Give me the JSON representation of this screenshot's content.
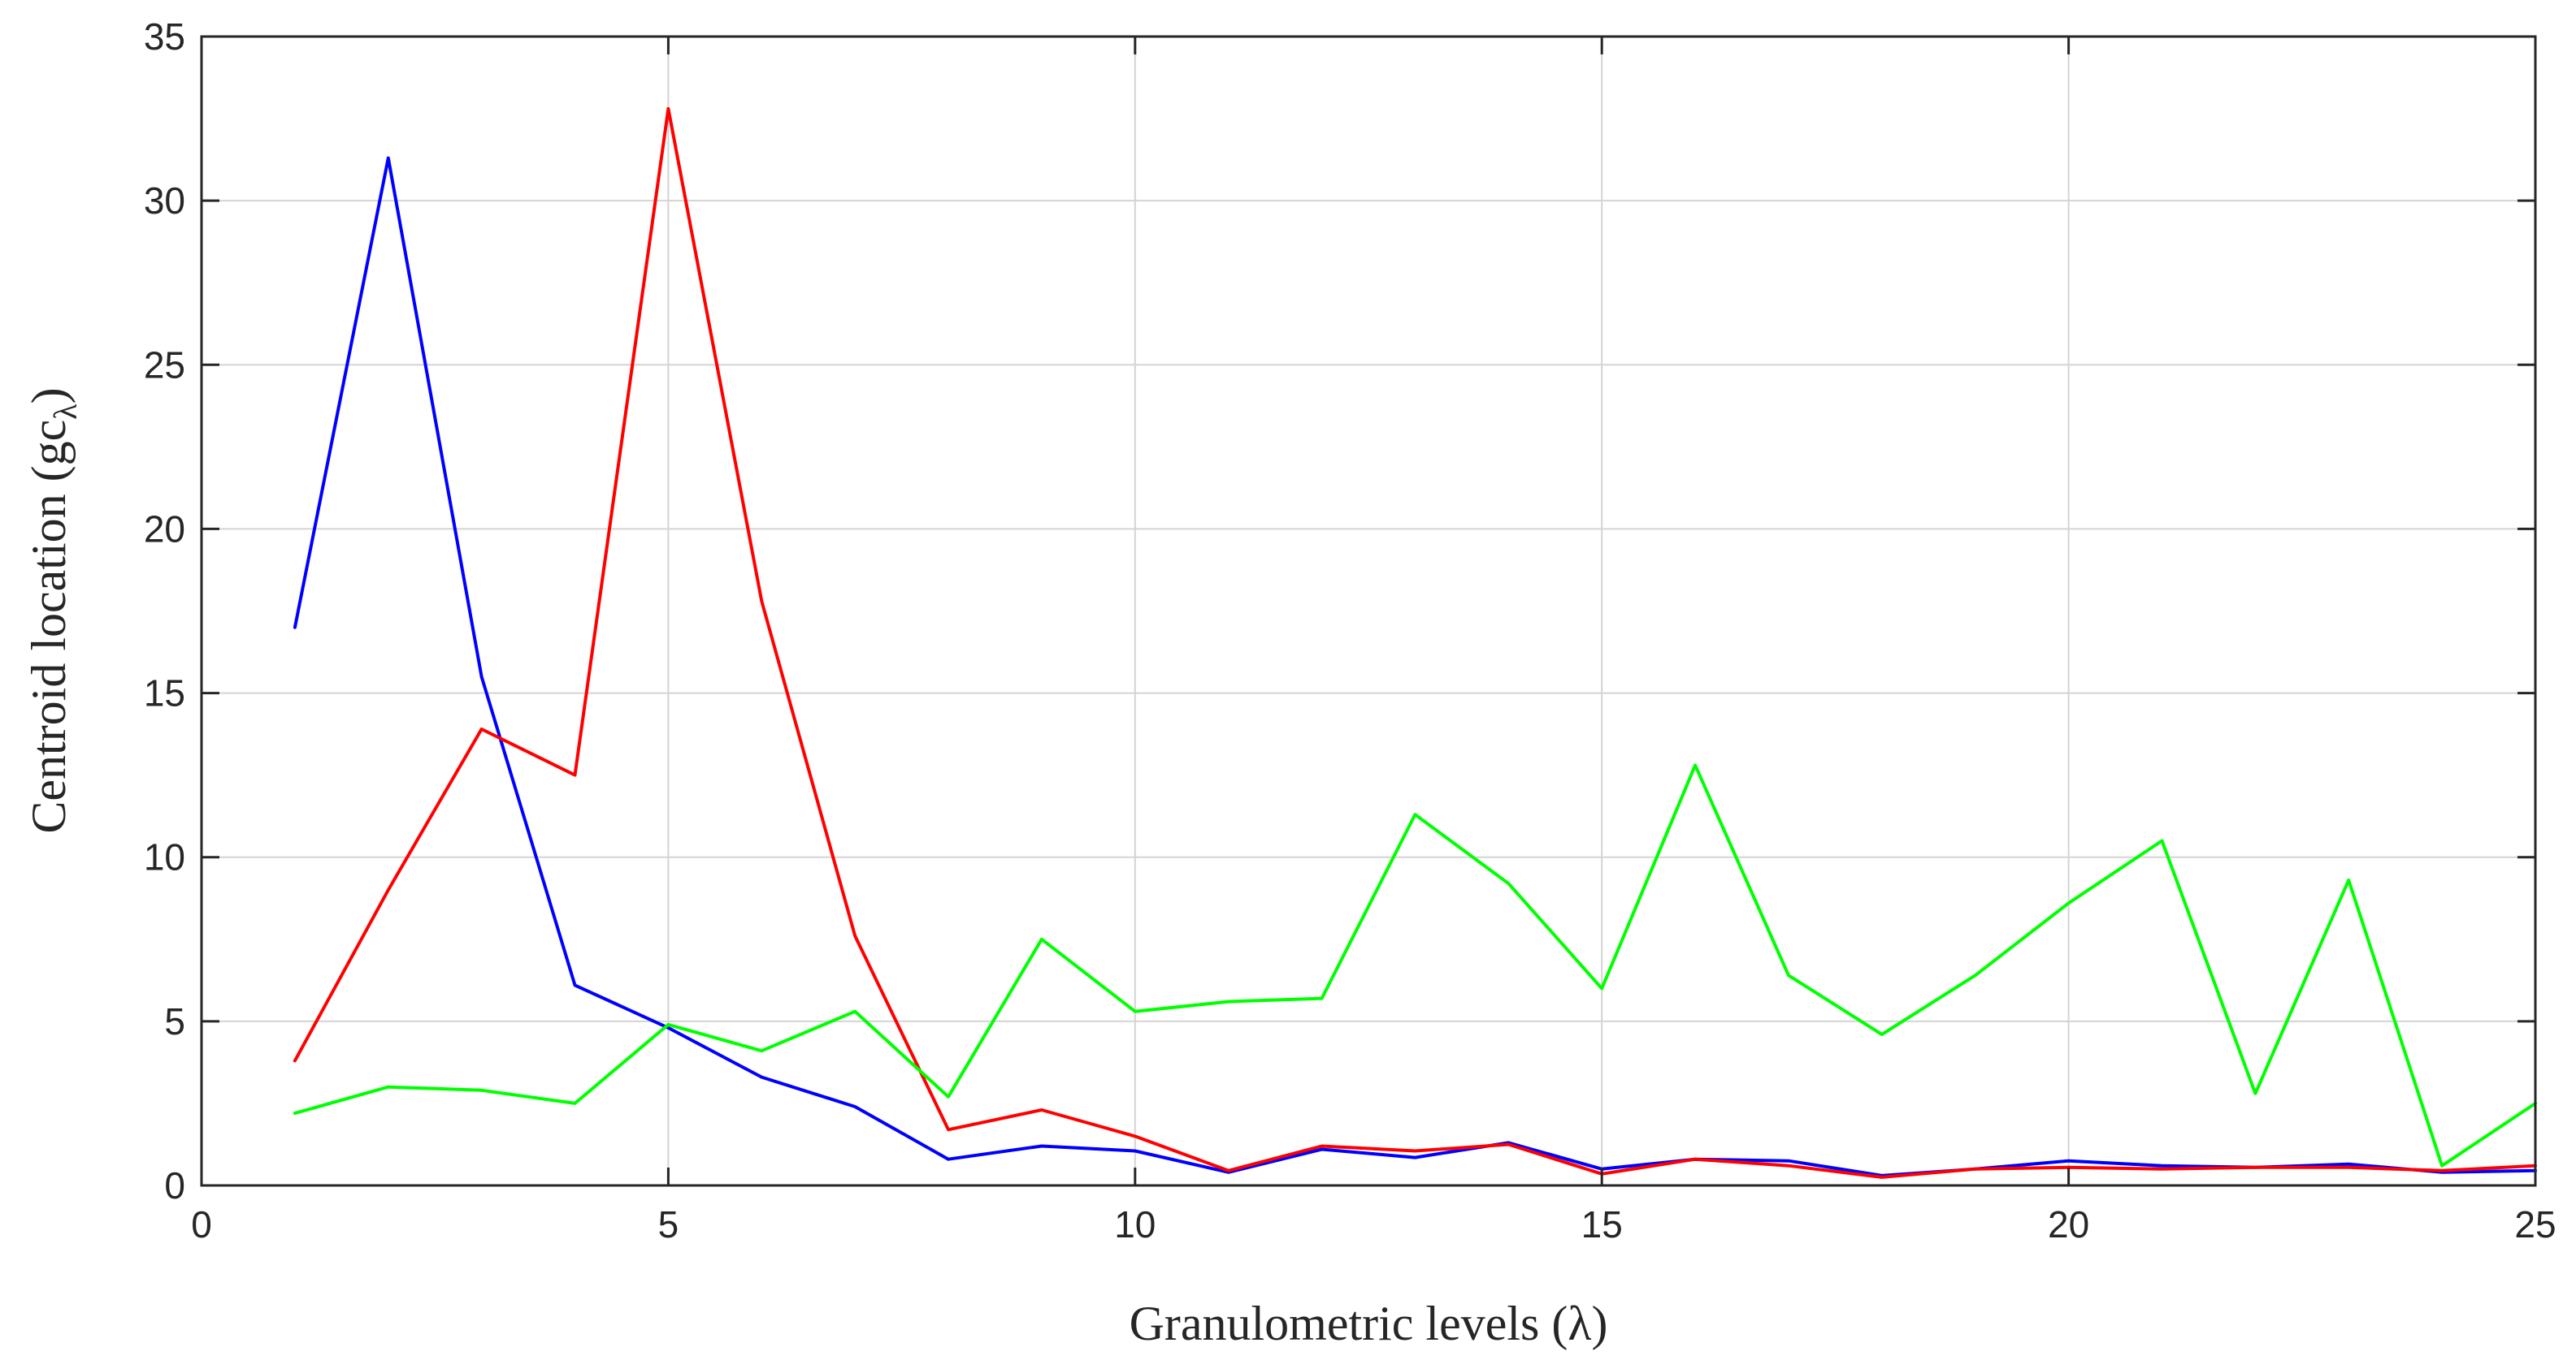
{
  "chart_data": {
    "type": "line",
    "title": "",
    "xlabel": "Granulometric levels (λ)",
    "ylabel_main": "Centroid location (gc",
    "ylabel_sub": "λ",
    "ylabel_close": ")",
    "xlim": [
      0,
      25
    ],
    "ylim": [
      0,
      35
    ],
    "x_ticks": [
      0,
      5,
      10,
      15,
      20,
      25
    ],
    "y_ticks": [
      0,
      5,
      10,
      15,
      20,
      25,
      30,
      35
    ],
    "grid": true,
    "legend": "none",
    "x": [
      1,
      2,
      3,
      4,
      5,
      6,
      7,
      8,
      9,
      10,
      11,
      12,
      13,
      14,
      15,
      16,
      17,
      18,
      19,
      20,
      21,
      22,
      23,
      24,
      25
    ],
    "series": [
      {
        "color": "#0000ff",
        "values": [
          17.0,
          31.3,
          15.5,
          6.1,
          4.8,
          3.3,
          2.4,
          0.8,
          1.2,
          1.05,
          0.4,
          1.1,
          0.85,
          1.3,
          0.5,
          0.8,
          0.75,
          0.3,
          0.5,
          0.75,
          0.6,
          0.55,
          0.65,
          0.4,
          0.45
        ]
      },
      {
        "color": "#ff0000",
        "values": [
          3.8,
          9.0,
          13.9,
          12.5,
          32.8,
          17.8,
          7.6,
          1.7,
          2.3,
          1.5,
          0.45,
          1.2,
          1.05,
          1.25,
          0.35,
          0.8,
          0.6,
          0.25,
          0.5,
          0.55,
          0.5,
          0.55,
          0.55,
          0.45,
          0.6
        ]
      },
      {
        "color": "#00ff00",
        "values": [
          2.2,
          3.0,
          2.9,
          2.5,
          4.9,
          4.1,
          5.3,
          2.7,
          7.5,
          5.3,
          5.6,
          5.7,
          11.3,
          9.2,
          6.0,
          12.8,
          6.4,
          4.6,
          6.4,
          8.6,
          10.5,
          2.8,
          9.3,
          0.6,
          2.5
        ]
      }
    ]
  }
}
